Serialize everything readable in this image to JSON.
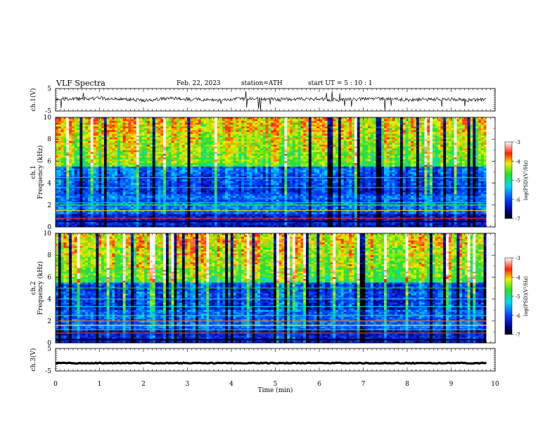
{
  "header": {
    "title": "VLF  Spectra",
    "date": "Feb. 22, 2023",
    "station": "station=ATH",
    "start_ut": "start  UT  =    5  : 10 : 1"
  },
  "chart_data": [
    {
      "type": "line",
      "id": "ch1-voltage",
      "ylabel": "ch.1(V)",
      "ylim": [
        -5,
        5
      ],
      "y_ticks": [
        "5",
        "-5"
      ],
      "xlim": [
        0,
        10
      ],
      "data_extent_min": 9.8,
      "series": [
        {
          "y_approx": [
            0.2,
            0.5,
            0.3,
            0.7,
            0.4,
            0.1,
            -0.2,
            0.3,
            0.6,
            0.2,
            0.0,
            -0.3,
            0.4,
            0.5,
            0.2,
            0.1,
            0.3,
            0.4,
            0.2,
            -0.1,
            0.2,
            0.3,
            0.5,
            0.2,
            0.0,
            0.1,
            0.3,
            0.2,
            -0.2,
            0.1
          ]
        }
      ]
    },
    {
      "type": "heatmap",
      "id": "ch1-spectrogram",
      "ylabel": "ch.1\nFrequency  (kHz)",
      "ylim": [
        0,
        10
      ],
      "y_ticks": [
        "0",
        "2",
        "4",
        "6",
        "8",
        "10"
      ],
      "xlim": [
        0,
        10
      ],
      "data_extent_min": 9.8,
      "colorbar": {
        "label": "log(PSD)(V²/Hz)",
        "range": [
          -7,
          -3
        ],
        "ticks": [
          "-3",
          "-4",
          "-5",
          "-6",
          "-7"
        ]
      }
    },
    {
      "type": "heatmap",
      "id": "ch2-spectrogram",
      "ylabel": "ch.2\nFrequency  (kHz)",
      "ylim": [
        0,
        10
      ],
      "y_ticks": [
        "0",
        "2",
        "4",
        "6",
        "8",
        "10"
      ],
      "xlim": [
        0,
        10
      ],
      "data_extent_min": 9.8,
      "colorbar": {
        "label": "log(PSD)(V²/Hz)",
        "range": [
          -7,
          -3
        ],
        "ticks": [
          "-3",
          "-4",
          "-5",
          "-6",
          "-7"
        ]
      }
    },
    {
      "type": "line",
      "id": "ch3-voltage",
      "ylabel": "ch.3(V)",
      "ylim": [
        -5,
        5
      ],
      "y_ticks": [
        "5",
        "-5"
      ],
      "xlim": [
        0,
        10
      ],
      "data_extent_min": 9.8,
      "series": [
        {
          "y_const": -1.5
        }
      ]
    }
  ],
  "x_axis": {
    "label": "Time  (min)",
    "ticks": [
      "0",
      "1",
      "2",
      "3",
      "4",
      "5",
      "6",
      "7",
      "8",
      "9",
      "10"
    ]
  }
}
